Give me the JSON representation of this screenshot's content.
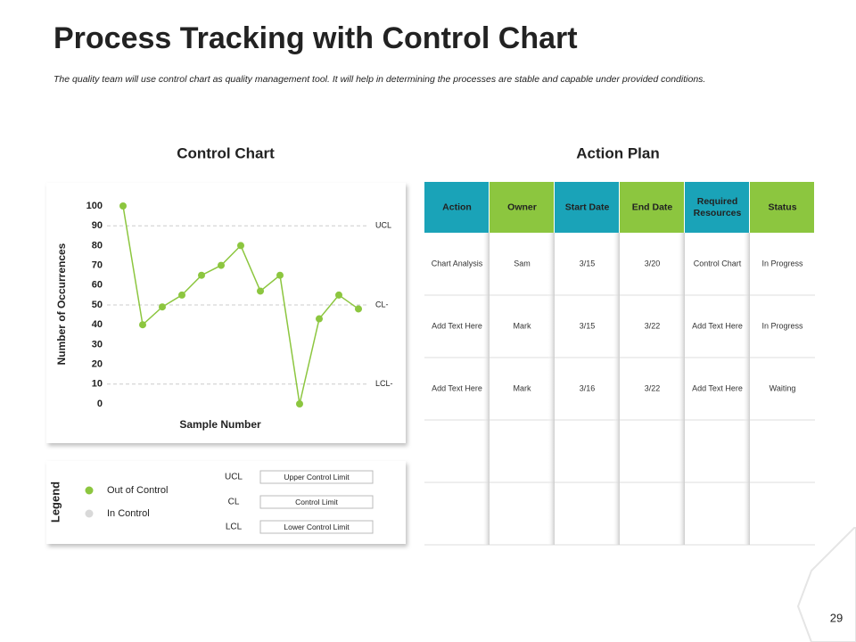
{
  "header": {
    "title": "Process Tracking with Control Chart",
    "subtitle": "The quality team will use control chart as quality management tool. It will help in determining the processes are stable and capable under provided conditions."
  },
  "chart_data": {
    "type": "line",
    "title": "Control Chart",
    "y_label": "Number of Occurrences",
    "x_label": "Sample Number",
    "categories": [
      null,
      null,
      null,
      null,
      null,
      null,
      null,
      null,
      null,
      null,
      null,
      null,
      null
    ],
    "series": [
      {
        "color": "#8cc63f",
        "values": [
          100,
          40,
          49,
          55,
          65,
          70,
          80,
          57,
          65,
          0,
          43,
          55,
          48
        ]
      }
    ],
    "ylim": [
      0,
      100
    ],
    "yticks": [
      0,
      10,
      20,
      30,
      40,
      50,
      60,
      70,
      80,
      90,
      100
    ],
    "control_lines": [
      {
        "label": "UCL",
        "value": 90
      },
      {
        "label": "CL-",
        "value": 50
      },
      {
        "label": "LCL-",
        "value": 10
      }
    ]
  },
  "legend": {
    "title": "Legend",
    "items": [
      {
        "label": "Out of Control",
        "color": "#8cc63f"
      },
      {
        "label": "In Control",
        "color": "#d9d9d9"
      }
    ],
    "limits": [
      {
        "abbr": "UCL",
        "label": "Upper Control Limit"
      },
      {
        "abbr": "CL",
        "label": "Control Limit"
      },
      {
        "abbr": "LCL",
        "label": "Lower Control Limit"
      }
    ]
  },
  "table": {
    "title": "Action Plan",
    "columns": [
      "Action",
      "Owner",
      "Start Date",
      "End Date",
      "Required Resources",
      "Status"
    ],
    "rows": [
      [
        "Chart Analysis",
        "Sam",
        "3/15",
        "3/20",
        "Control Chart",
        "In Progress"
      ],
      [
        "Add Text Here",
        "Mark",
        "3/15",
        "3/22",
        "Add Text Here",
        "In Progress"
      ],
      [
        "Add Text Here",
        "Mark",
        "3/16",
        "3/22",
        "Add Text Here",
        "Waiting"
      ]
    ]
  },
  "page_number": "29"
}
